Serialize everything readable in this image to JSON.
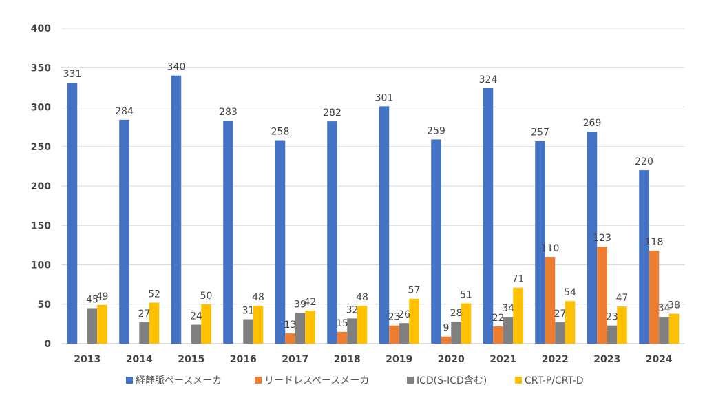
{
  "chart_data": {
    "type": "bar",
    "categories": [
      "2013",
      "2014",
      "2015",
      "2016",
      "2017",
      "2018",
      "2019",
      "2020",
      "2021",
      "2022",
      "2023",
      "2024"
    ],
    "series": [
      {
        "name": "経静脈ペースメーカ",
        "color": "#4472C4",
        "values": [
          331,
          284,
          340,
          283,
          258,
          282,
          301,
          259,
          324,
          257,
          269,
          220
        ]
      },
      {
        "name": "リードレスペースメーカ",
        "color": "#ED7D31",
        "values": [
          null,
          null,
          null,
          null,
          13,
          15,
          23,
          9,
          22,
          110,
          123,
          118
        ]
      },
      {
        "name": "ICD(S-ICD含む)",
        "color": "#808080",
        "values": [
          45,
          27,
          24,
          31,
          39,
          32,
          26,
          28,
          34,
          27,
          23,
          34
        ]
      },
      {
        "name": "CRT-P/CRT-D",
        "color": "#FFC000",
        "values": [
          49,
          52,
          50,
          48,
          42,
          48,
          57,
          51,
          71,
          54,
          47,
          38
        ]
      }
    ],
    "yticks": [
      "0",
      "50",
      "100",
      "150",
      "200",
      "250",
      "300",
      "350",
      "400"
    ],
    "ylim": [
      0,
      400
    ],
    "grid": true,
    "legend": "bottom",
    "title": "",
    "xlabel": "",
    "ylabel": ""
  }
}
